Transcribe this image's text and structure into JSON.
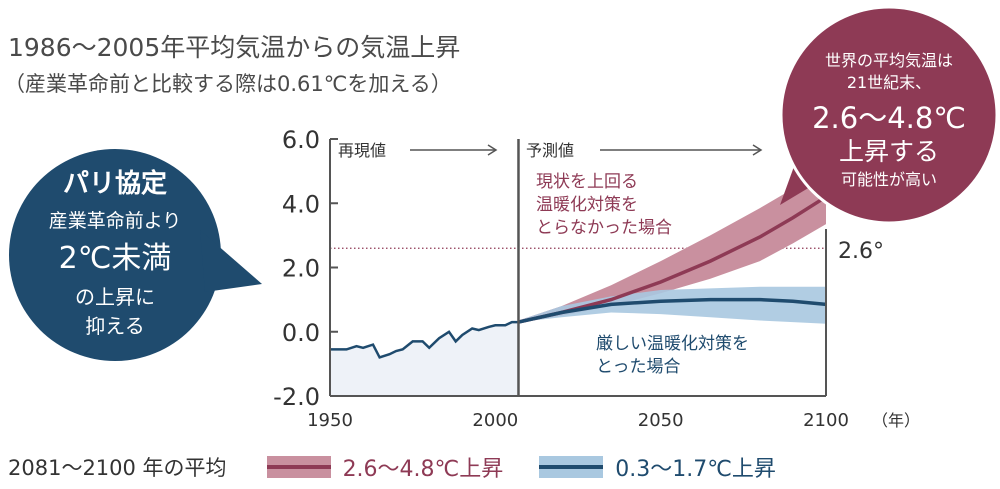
{
  "header": {
    "title": "1986〜2005年平均気温からの気温上昇",
    "subtitle": "（産業革命前と比較する際は0.61℃を加える）"
  },
  "paris_bubble": {
    "heading": "パリ協定",
    "line1": "産業革命前より",
    "line2": "2℃未満",
    "line3": "の上昇に",
    "line4": "抑える"
  },
  "world_bubble": {
    "line1": "世界の平均気温は",
    "line2": "21世紀末、",
    "line3": "2.6〜4.8℃",
    "line4": "上昇する",
    "line5": "可能性が高い"
  },
  "annotations": {
    "observed": "再現値",
    "projected": "予測値",
    "high_case_1": "現状を上回る",
    "high_case_2": "温暖化対策を",
    "high_case_3": "とらなかった場合",
    "low_case_1": "厳しい温暖化対策を",
    "low_case_2": "とった場合",
    "ref_value": "2.6°",
    "year_unit": "（年）"
  },
  "legend": {
    "lead": "2081〜2100 年の平均",
    "high": "2.6〜4.8℃上昇",
    "low": "0.3〜1.7℃上昇"
  },
  "colors": {
    "high_line": "#8e3a55",
    "high_band": "#c9909f",
    "low_line": "#1f4b6e",
    "low_band": "#a9c8e0",
    "observed_fill": "#eef2f8",
    "paris_bubble": "#1f4b6e",
    "world_bubble": "#8e3a55",
    "axis": "#555555"
  },
  "chart_data": {
    "type": "line",
    "xlim": [
      1950,
      2100
    ],
    "ylim": [
      -2.0,
      6.0
    ],
    "x_ticks": [
      "1950",
      "2000",
      "2050",
      "2100"
    ],
    "y_ticks": [
      "6.0",
      "4.0",
      "2.0",
      "0.0",
      "-2.0"
    ],
    "reference_line_y": 2.6,
    "divider_year": 2007,
    "series": [
      {
        "key": "observed",
        "x": [
          1950,
          1955,
          1958,
          1960,
          1963,
          1965,
          1968,
          1970,
          1972,
          1975,
          1978,
          1980,
          1983,
          1986,
          1988,
          1990,
          1993,
          1995,
          1998,
          2000,
          2003,
          2005,
          2007
        ],
        "y": [
          -0.55,
          -0.55,
          -0.45,
          -0.5,
          -0.4,
          -0.8,
          -0.7,
          -0.6,
          -0.55,
          -0.3,
          -0.3,
          -0.5,
          -0.2,
          0.0,
          -0.3,
          -0.1,
          0.1,
          0.05,
          0.15,
          0.2,
          0.2,
          0.3,
          0.3
        ]
      },
      {
        "key": "high",
        "x": [
          2007,
          2020,
          2035,
          2050,
          2065,
          2080,
          2090,
          2100
        ],
        "y": [
          0.3,
          0.6,
          1.0,
          1.55,
          2.2,
          2.95,
          3.55,
          4.2
        ],
        "upper": [
          0.35,
          0.8,
          1.45,
          2.2,
          3.0,
          3.85,
          4.45,
          5.1
        ],
        "lower": [
          0.3,
          0.5,
          0.8,
          1.2,
          1.65,
          2.2,
          2.75,
          3.35
        ]
      },
      {
        "key": "low",
        "x": [
          2007,
          2020,
          2035,
          2050,
          2065,
          2080,
          2090,
          2100
        ],
        "y": [
          0.3,
          0.6,
          0.85,
          0.95,
          1.0,
          1.0,
          0.95,
          0.85
        ],
        "upper": [
          0.35,
          0.8,
          1.1,
          1.3,
          1.35,
          1.4,
          1.4,
          1.4
        ],
        "lower": [
          0.3,
          0.45,
          0.6,
          0.55,
          0.45,
          0.35,
          0.3,
          0.25
        ]
      }
    ]
  }
}
